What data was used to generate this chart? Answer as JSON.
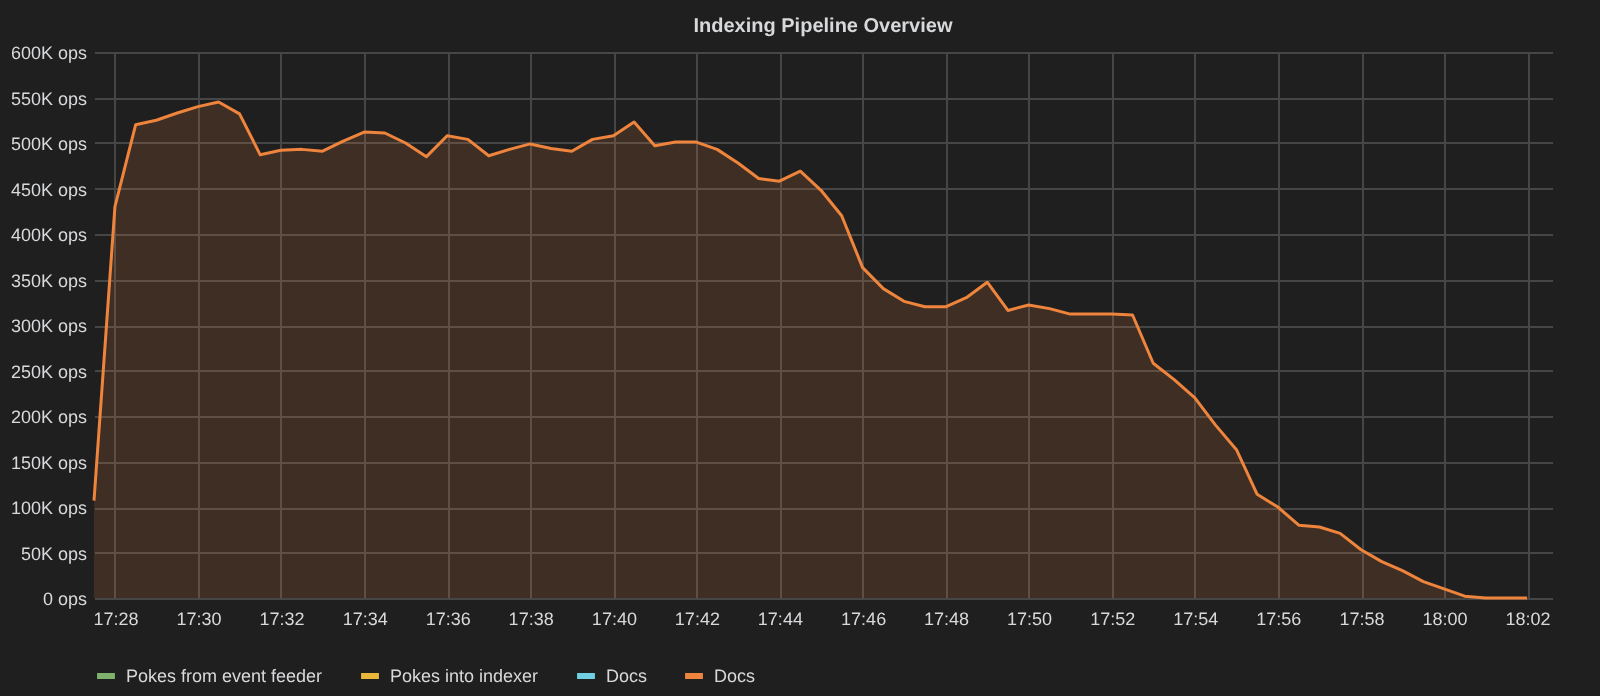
{
  "chart_data": {
    "type": "line",
    "title": "Indexing Pipeline Overview",
    "x": [
      17.4583,
      17.4667,
      17.475,
      17.4833,
      17.4917,
      17.5,
      17.5083,
      17.5167,
      17.525,
      17.5333,
      17.5417,
      17.55,
      17.5583,
      17.5667,
      17.575,
      17.5833,
      17.5917,
      17.6,
      17.6083,
      17.6167,
      17.625,
      17.6333,
      17.6417,
      17.65,
      17.6583,
      17.6667,
      17.675,
      17.6833,
      17.6917,
      17.7,
      17.7083,
      17.7167,
      17.725,
      17.7333,
      17.7417,
      17.75,
      17.7583,
      17.7667,
      17.775,
      17.7833,
      17.7917,
      17.8,
      17.8083,
      17.8167,
      17.825,
      17.8333,
      17.8417,
      17.85,
      17.8583,
      17.8667,
      17.875,
      17.8833,
      17.8917,
      17.9,
      17.9083,
      17.9167,
      17.925,
      17.9333,
      17.9417,
      17.95,
      17.9583,
      17.9667,
      17.975,
      17.9833,
      17.9917,
      18.0,
      18.0083,
      18.0167,
      18.025,
      18.0333
    ],
    "series": [
      {
        "name": "Pokes from event feeder",
        "color": "#7eb26d",
        "values": [
          null,
          null,
          null,
          null,
          null,
          null,
          null,
          null,
          null,
          null,
          null,
          null,
          null,
          null,
          null,
          null,
          null,
          null,
          null,
          null,
          null,
          null,
          null,
          null,
          null,
          null,
          null,
          null,
          null,
          null,
          null,
          null,
          null,
          null,
          null,
          null,
          null,
          null,
          null,
          null,
          null,
          null,
          null,
          null,
          null,
          null,
          null,
          null,
          null,
          null,
          null,
          null,
          null,
          null,
          null,
          null,
          null,
          null,
          null,
          null,
          null,
          null,
          null,
          null,
          null,
          null,
          null,
          null,
          null,
          null
        ]
      },
      {
        "name": "Pokes into indexer",
        "color": "#eab839",
        "values": [
          null,
          null,
          null,
          null,
          null,
          null,
          null,
          null,
          null,
          null,
          null,
          null,
          null,
          null,
          null,
          null,
          null,
          null,
          null,
          null,
          null,
          null,
          null,
          null,
          null,
          null,
          null,
          null,
          null,
          null,
          null,
          null,
          null,
          null,
          null,
          null,
          null,
          null,
          null,
          null,
          null,
          null,
          null,
          null,
          null,
          null,
          null,
          null,
          null,
          null,
          null,
          null,
          null,
          null,
          null,
          null,
          null,
          null,
          null,
          null,
          null,
          null,
          null,
          null,
          null,
          null,
          null,
          null,
          null,
          null
        ]
      },
      {
        "name": "Docs",
        "color": "#6ed0e0",
        "values": [
          null,
          null,
          null,
          null,
          null,
          null,
          null,
          null,
          null,
          null,
          null,
          null,
          null,
          null,
          null,
          null,
          null,
          null,
          null,
          null,
          null,
          null,
          null,
          null,
          null,
          null,
          null,
          null,
          null,
          null,
          null,
          null,
          null,
          null,
          null,
          null,
          null,
          null,
          null,
          null,
          null,
          null,
          null,
          null,
          null,
          null,
          null,
          null,
          null,
          null,
          null,
          null,
          null,
          null,
          null,
          null,
          null,
          null,
          null,
          null,
          null,
          null,
          null,
          null,
          null,
          null,
          null,
          null,
          null,
          null
        ]
      },
      {
        "name": "Docs",
        "color": "#ef843c",
        "type": "area",
        "values": [
          107000,
          430000,
          520000,
          525000,
          533000,
          540000,
          545000,
          532000,
          487000,
          492000,
          493000,
          491000,
          502000,
          512000,
          511000,
          500000,
          485000,
          508000,
          504000,
          486000,
          493000,
          499000,
          494000,
          491000,
          504000,
          508000,
          523000,
          497000,
          501000,
          501000,
          493000,
          478000,
          461000,
          458000,
          469000,
          448000,
          420000,
          363000,
          340000,
          326000,
          320000,
          320000,
          330000,
          347000,
          316000,
          322000,
          318000,
          312000,
          312000,
          312000,
          311000,
          258000,
          240000,
          220000,
          190000,
          163000,
          114000,
          100000,
          80000,
          78000,
          71000,
          53000,
          40000,
          30000,
          18000,
          10000,
          2000,
          0,
          0,
          0
        ]
      }
    ],
    "xlim": [
      17.4583,
      18.0433
    ],
    "xticks": [
      {
        "value": 17.4667,
        "label": "17:28"
      },
      {
        "value": 17.5,
        "label": "17:30"
      },
      {
        "value": 17.5333,
        "label": "17:32"
      },
      {
        "value": 17.5667,
        "label": "17:34"
      },
      {
        "value": 17.6,
        "label": "17:36"
      },
      {
        "value": 17.6333,
        "label": "17:38"
      },
      {
        "value": 17.6667,
        "label": "17:40"
      },
      {
        "value": 17.7,
        "label": "17:42"
      },
      {
        "value": 17.7333,
        "label": "17:44"
      },
      {
        "value": 17.7667,
        "label": "17:46"
      },
      {
        "value": 17.8,
        "label": "17:48"
      },
      {
        "value": 17.8333,
        "label": "17:50"
      },
      {
        "value": 17.8667,
        "label": "17:52"
      },
      {
        "value": 17.9,
        "label": "17:54"
      },
      {
        "value": 17.9333,
        "label": "17:56"
      },
      {
        "value": 17.9667,
        "label": "17:58"
      },
      {
        "value": 18.0,
        "label": "18:00"
      },
      {
        "value": 18.0333,
        "label": "18:02"
      }
    ],
    "ylim": [
      0,
      600000
    ],
    "yticks": [
      {
        "value": 0,
        "label": "0 ops"
      },
      {
        "value": 50000,
        "label": "50K ops"
      },
      {
        "value": 100000,
        "label": "100K ops"
      },
      {
        "value": 150000,
        "label": "150K ops"
      },
      {
        "value": 200000,
        "label": "200K ops"
      },
      {
        "value": 250000,
        "label": "250K ops"
      },
      {
        "value": 300000,
        "label": "300K ops"
      },
      {
        "value": 350000,
        "label": "350K ops"
      },
      {
        "value": 400000,
        "label": "400K ops"
      },
      {
        "value": 450000,
        "label": "450K ops"
      },
      {
        "value": 500000,
        "label": "500K ops"
      },
      {
        "value": 550000,
        "label": "550K ops"
      },
      {
        "value": 600000,
        "label": "600K ops"
      }
    ],
    "grid": true,
    "legend": "bottom",
    "marker": "none",
    "line_style": "solid"
  }
}
